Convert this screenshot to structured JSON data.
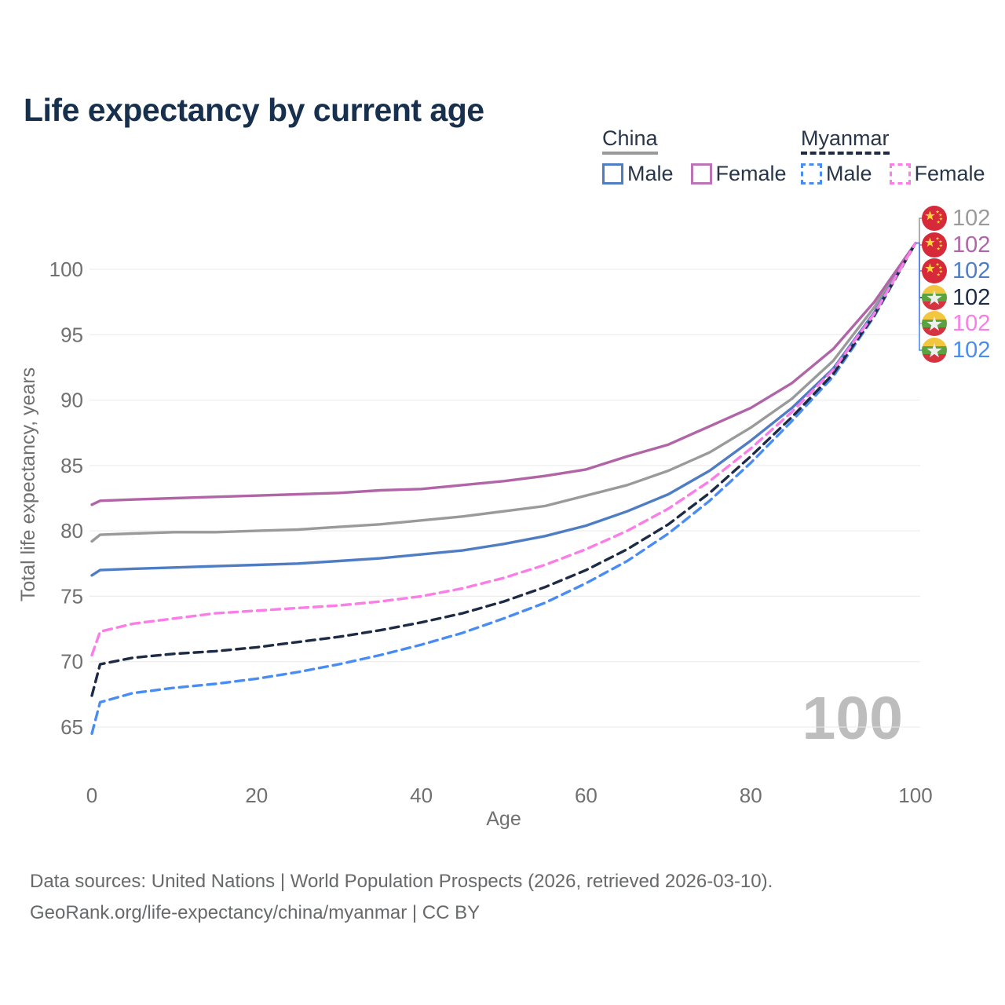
{
  "title": "Life expectancy by current age",
  "legend": {
    "groups": [
      {
        "label": "China",
        "line_style": "solid",
        "header_line_color": "#9a9a9a",
        "items": [
          {
            "label": "Male",
            "color": "#4f7dc4",
            "dashed": false
          },
          {
            "label": "Female",
            "color": "#bb74b4",
            "dashed": false
          }
        ]
      },
      {
        "label": "Myanmar",
        "line_style": "dashed",
        "header_line_color": "#1e2b45",
        "items": [
          {
            "label": "Male",
            "color": "#4a8df2",
            "dashed": true
          },
          {
            "label": "Female",
            "color": "#fa7de8",
            "dashed": true
          }
        ]
      }
    ]
  },
  "watermark": "100",
  "footer": {
    "line1": "Data sources: United Nations | World Population Prospects (2026, retrieved 2026-03-10).",
    "line2": "GeoRank.org/life-expectancy/china/myanmar | CC BY"
  },
  "chart_data": {
    "type": "line",
    "title": "Life expectancy by current age",
    "xlabel": "Age",
    "ylabel": "Total life expectancy, years",
    "xlim": [
      0,
      100
    ],
    "ylim": [
      63,
      103
    ],
    "xticks": [
      0,
      20,
      40,
      60,
      80,
      100
    ],
    "yticks": [
      65,
      70,
      75,
      80,
      85,
      90,
      95,
      100
    ],
    "grid": true,
    "legend_position": "top-right",
    "x": [
      0,
      1,
      5,
      10,
      15,
      20,
      25,
      30,
      35,
      40,
      45,
      50,
      55,
      60,
      65,
      70,
      75,
      80,
      85,
      90,
      95,
      100
    ],
    "series": [
      {
        "name": "China",
        "country": "China",
        "sex": "All",
        "color": "#9a9a9a",
        "dashed": false,
        "flag": "china",
        "end_label": "102",
        "values": [
          79.2,
          79.7,
          79.8,
          79.9,
          79.9,
          80.0,
          80.1,
          80.3,
          80.5,
          80.8,
          81.1,
          81.5,
          81.9,
          82.7,
          83.5,
          84.6,
          86.0,
          87.9,
          90.1,
          93.0,
          97.1,
          102
        ]
      },
      {
        "name": "China Female",
        "country": "China",
        "sex": "Female",
        "color": "#b165a7",
        "dashed": false,
        "flag": "china",
        "end_label": "102",
        "values": [
          82.0,
          82.3,
          82.4,
          82.5,
          82.6,
          82.7,
          82.8,
          82.9,
          83.1,
          83.2,
          83.5,
          83.8,
          84.2,
          84.7,
          85.7,
          86.6,
          88.0,
          89.4,
          91.3,
          93.9,
          97.5,
          102
        ]
      },
      {
        "name": "China Male",
        "country": "China",
        "sex": "Male",
        "color": "#4f7dc4",
        "dashed": false,
        "flag": "china",
        "end_label": "102",
        "values": [
          76.6,
          77.0,
          77.1,
          77.2,
          77.3,
          77.4,
          77.5,
          77.7,
          77.9,
          78.2,
          78.5,
          79.0,
          79.6,
          80.4,
          81.5,
          82.8,
          84.6,
          86.9,
          89.4,
          92.4,
          96.7,
          102
        ]
      },
      {
        "name": "Myanmar",
        "country": "Myanmar",
        "sex": "All",
        "color": "#1e2b45",
        "dashed": true,
        "flag": "myanmar",
        "end_label": "102",
        "values": [
          67.4,
          69.8,
          70.3,
          70.6,
          70.8,
          71.1,
          71.5,
          71.9,
          72.4,
          73.0,
          73.7,
          74.6,
          75.7,
          77.0,
          78.6,
          80.5,
          82.9,
          85.7,
          88.7,
          92.0,
          96.5,
          102
        ]
      },
      {
        "name": "Myanmar Female",
        "country": "Myanmar",
        "sex": "Female",
        "color": "#fa7de8",
        "dashed": true,
        "flag": "myanmar",
        "end_label": "102",
        "values": [
          70.5,
          72.3,
          72.9,
          73.3,
          73.7,
          73.9,
          74.1,
          74.3,
          74.6,
          75.0,
          75.6,
          76.4,
          77.4,
          78.6,
          80.0,
          81.7,
          83.8,
          86.3,
          89.1,
          92.3,
          96.6,
          102
        ]
      },
      {
        "name": "Myanmar Male",
        "country": "Myanmar",
        "sex": "Male",
        "color": "#4a8df2",
        "dashed": true,
        "flag": "myanmar",
        "end_label": "102",
        "values": [
          64.5,
          66.9,
          67.6,
          68.0,
          68.3,
          68.7,
          69.2,
          69.8,
          70.5,
          71.3,
          72.2,
          73.3,
          74.5,
          76.0,
          77.7,
          79.8,
          82.3,
          85.2,
          88.4,
          91.8,
          96.4,
          102
        ]
      }
    ]
  }
}
